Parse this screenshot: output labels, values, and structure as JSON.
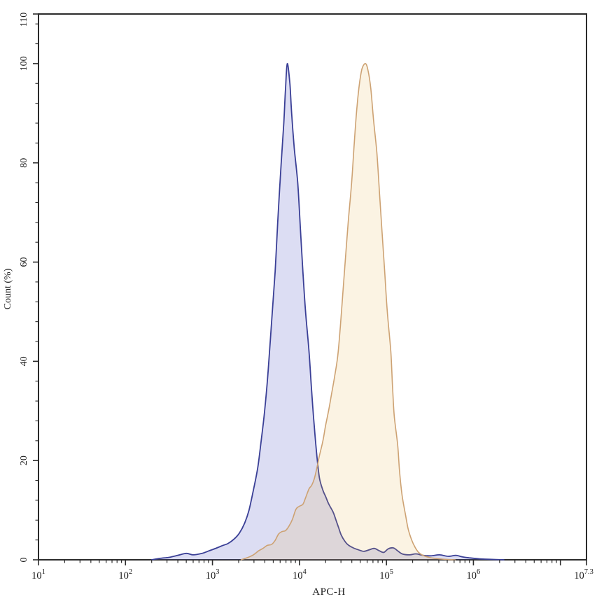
{
  "figure": {
    "kind": "flow-cytometry-histogram",
    "background": "#ffffff",
    "axis_color": "#2b2b2b",
    "tick_label_color": "#1a1a1a"
  },
  "axes": {
    "x": {
      "label": "APC-H",
      "scale": "log10",
      "min_exp": 1,
      "max_exp": 7.3,
      "tick_base": "10",
      "labeled_ticks": [
        {
          "exp": 1,
          "exp_text": "1"
        },
        {
          "exp": 2,
          "exp_text": "2"
        },
        {
          "exp": 3,
          "exp_text": "3"
        },
        {
          "exp": 4,
          "exp_text": "4"
        },
        {
          "exp": 5,
          "exp_text": "5"
        },
        {
          "exp": 6,
          "exp_text": "6"
        },
        {
          "exp": 7.3,
          "exp_text": "7.3"
        }
      ],
      "unlabeled_major_ticks": [
        7
      ]
    },
    "y": {
      "label": "Count (%)",
      "min": 0,
      "max": 110,
      "labeled_ticks": [
        0,
        20,
        40,
        60,
        80,
        100,
        110
      ],
      "minor_step": 4
    }
  },
  "chart_data": {
    "type": "area",
    "title": "",
    "xlabel": "APC-H",
    "ylabel": "Count (%)",
    "x_scale": "log10",
    "x_range_exp": [
      1,
      7.3
    ],
    "y_range": [
      0,
      110
    ],
    "grid": false,
    "legend": false,
    "series": [
      {
        "name": "blue-filled-peak",
        "stroke": "#3a3f96",
        "fill": "rgba(90,95,200,0.21)",
        "stroke_width": 1.8,
        "points": [
          [
            2.3,
            0.0
          ],
          [
            2.4,
            0.3
          ],
          [
            2.5,
            0.5
          ],
          [
            2.6,
            0.9
          ],
          [
            2.7,
            1.3
          ],
          [
            2.78,
            1.0
          ],
          [
            2.88,
            1.3
          ],
          [
            2.96,
            1.8
          ],
          [
            3.05,
            2.4
          ],
          [
            3.12,
            2.9
          ],
          [
            3.18,
            3.3
          ],
          [
            3.25,
            4.2
          ],
          [
            3.31,
            5.4
          ],
          [
            3.37,
            7.4
          ],
          [
            3.42,
            10.0
          ],
          [
            3.47,
            14.0
          ],
          [
            3.52,
            18.5
          ],
          [
            3.56,
            24.0
          ],
          [
            3.6,
            30.0
          ],
          [
            3.64,
            38.0
          ],
          [
            3.68,
            48.0
          ],
          [
            3.72,
            58.0
          ],
          [
            3.75,
            68.0
          ],
          [
            3.79,
            80.0
          ],
          [
            3.82,
            88.0
          ],
          [
            3.84,
            95.0
          ],
          [
            3.86,
            100.0
          ],
          [
            3.89,
            96.0
          ],
          [
            3.91,
            90.0
          ],
          [
            3.94,
            83.0
          ],
          [
            3.98,
            76.0
          ],
          [
            4.01,
            67.0
          ],
          [
            4.04,
            58.0
          ],
          [
            4.07,
            50.0
          ],
          [
            4.11,
            42.0
          ],
          [
            4.14,
            34.0
          ],
          [
            4.17,
            27.0
          ],
          [
            4.2,
            21.0
          ],
          [
            4.23,
            16.5
          ],
          [
            4.27,
            14.0
          ],
          [
            4.3,
            12.8
          ],
          [
            4.33,
            11.5
          ],
          [
            4.35,
            10.8
          ],
          [
            4.39,
            9.5
          ],
          [
            4.42,
            8.0
          ],
          [
            4.45,
            6.5
          ],
          [
            4.48,
            5.0
          ],
          [
            4.52,
            3.8
          ],
          [
            4.56,
            3.0
          ],
          [
            4.62,
            2.4
          ],
          [
            4.68,
            2.0
          ],
          [
            4.74,
            1.7
          ],
          [
            4.8,
            2.0
          ],
          [
            4.86,
            2.3
          ],
          [
            4.92,
            1.8
          ],
          [
            4.97,
            1.5
          ],
          [
            5.02,
            2.2
          ],
          [
            5.08,
            2.4
          ],
          [
            5.13,
            1.8
          ],
          [
            5.18,
            1.2
          ],
          [
            5.26,
            1.0
          ],
          [
            5.34,
            1.2
          ],
          [
            5.42,
            0.9
          ],
          [
            5.51,
            0.8
          ],
          [
            5.61,
            1.0
          ],
          [
            5.71,
            0.7
          ],
          [
            5.8,
            0.9
          ],
          [
            5.87,
            0.6
          ],
          [
            5.95,
            0.4
          ],
          [
            6.07,
            0.2
          ],
          [
            6.19,
            0.1
          ],
          [
            6.35,
            0.0
          ]
        ]
      },
      {
        "name": "orange-filled-peak",
        "stroke": "#cda273",
        "fill": "rgba(230,180,80,0.16)",
        "stroke_width": 1.6,
        "points": [
          [
            3.33,
            0.0
          ],
          [
            3.41,
            0.5
          ],
          [
            3.47,
            1.0
          ],
          [
            3.53,
            1.8
          ],
          [
            3.58,
            2.3
          ],
          [
            3.63,
            2.9
          ],
          [
            3.68,
            3.1
          ],
          [
            3.72,
            3.9
          ],
          [
            3.76,
            5.2
          ],
          [
            3.8,
            5.7
          ],
          [
            3.84,
            5.9
          ],
          [
            3.88,
            6.8
          ],
          [
            3.92,
            8.2
          ],
          [
            3.96,
            10.2
          ],
          [
            4.0,
            10.8
          ],
          [
            4.04,
            11.2
          ],
          [
            4.07,
            12.5
          ],
          [
            4.11,
            14.3
          ],
          [
            4.14,
            15.0
          ],
          [
            4.17,
            16.3
          ],
          [
            4.2,
            18.5
          ],
          [
            4.23,
            21.0
          ],
          [
            4.27,
            24.0
          ],
          [
            4.3,
            27.0
          ],
          [
            4.34,
            30.5
          ],
          [
            4.37,
            33.5
          ],
          [
            4.4,
            36.5
          ],
          [
            4.44,
            41.0
          ],
          [
            4.47,
            47.0
          ],
          [
            4.5,
            54.0
          ],
          [
            4.53,
            61.0
          ],
          [
            4.56,
            68.0
          ],
          [
            4.6,
            76.0
          ],
          [
            4.63,
            84.0
          ],
          [
            4.66,
            91.0
          ],
          [
            4.69,
            96.0
          ],
          [
            4.72,
            99.0
          ],
          [
            4.76,
            100.0
          ],
          [
            4.79,
            98.5
          ],
          [
            4.82,
            95.0
          ],
          [
            4.85,
            89.0
          ],
          [
            4.89,
            82.0
          ],
          [
            4.92,
            74.0
          ],
          [
            4.95,
            66.0
          ],
          [
            4.98,
            58.0
          ],
          [
            5.01,
            50.0
          ],
          [
            5.05,
            42.0
          ],
          [
            5.07,
            35.0
          ],
          [
            5.09,
            29.0
          ],
          [
            5.13,
            23.0
          ],
          [
            5.15,
            18.0
          ],
          [
            5.18,
            13.0
          ],
          [
            5.22,
            9.0
          ],
          [
            5.25,
            6.2
          ],
          [
            5.29,
            4.0
          ],
          [
            5.33,
            2.5
          ],
          [
            5.37,
            1.5
          ],
          [
            5.42,
            0.9
          ],
          [
            5.49,
            0.5
          ],
          [
            5.56,
            0.3
          ],
          [
            5.67,
            0.1
          ],
          [
            5.79,
            0.0
          ]
        ]
      }
    ]
  }
}
